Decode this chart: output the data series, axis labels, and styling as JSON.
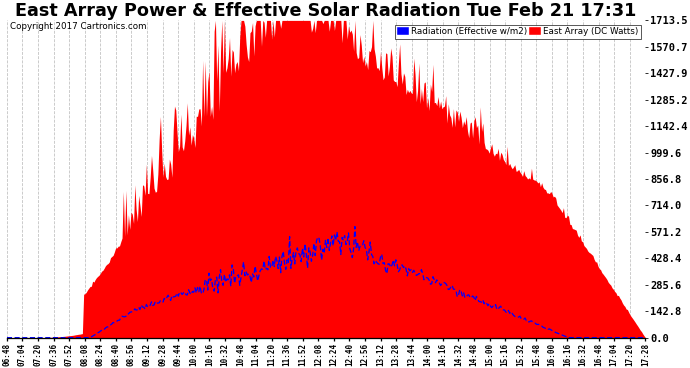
{
  "title": "East Array Power & Effective Solar Radiation Tue Feb 21 17:31",
  "copyright": "Copyright 2017 Cartronics.com",
  "ylabel_right_values": [
    0.0,
    142.8,
    285.6,
    428.4,
    571.2,
    714.0,
    856.8,
    999.6,
    1142.4,
    1285.2,
    1427.9,
    1570.7,
    1713.5
  ],
  "ymax": 1713.5,
  "ymin": 0.0,
  "legend_radiation_label": "Radiation (Effective w/m2)",
  "legend_east_label": "East Array (DC Watts)",
  "legend_radiation_color": "#0000ff",
  "legend_east_color": "#ff0000",
  "background_color": "#ffffff",
  "plot_background": "#ffffff",
  "grid_color": "#b0b0b0",
  "title_fontsize": 11,
  "x_tick_labels": [
    "06:48",
    "07:04",
    "07:20",
    "07:36",
    "07:52",
    "08:08",
    "08:24",
    "08:40",
    "08:56",
    "09:12",
    "09:28",
    "09:44",
    "10:00",
    "10:16",
    "10:32",
    "10:48",
    "11:04",
    "11:20",
    "11:36",
    "11:52",
    "12:08",
    "12:24",
    "12:40",
    "12:56",
    "13:12",
    "13:28",
    "13:44",
    "14:00",
    "14:16",
    "14:32",
    "14:48",
    "15:00",
    "15:16",
    "15:32",
    "15:48",
    "16:00",
    "16:16",
    "16:32",
    "16:48",
    "17:04",
    "17:20",
    "17:28"
  ]
}
